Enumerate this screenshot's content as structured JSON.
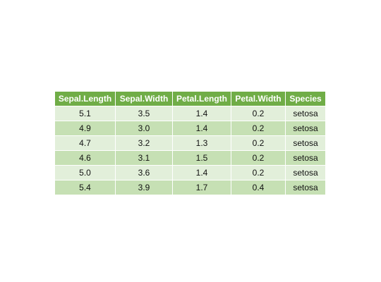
{
  "chart_data": {
    "type": "table",
    "columns": [
      "Sepal.Length",
      "Sepal.Width",
      "Petal.Length",
      "Petal.Width",
      "Species"
    ],
    "rows": [
      [
        "5.1",
        "3.5",
        "1.4",
        "0.2",
        "setosa"
      ],
      [
        "4.9",
        "3.0",
        "1.4",
        "0.2",
        "setosa"
      ],
      [
        "4.7",
        "3.2",
        "1.3",
        "0.2",
        "setosa"
      ],
      [
        "4.6",
        "3.1",
        "1.5",
        "0.2",
        "setosa"
      ],
      [
        "5.0",
        "3.6",
        "1.4",
        "0.2",
        "setosa"
      ],
      [
        "5.4",
        "3.9",
        "1.7",
        "0.4",
        "setosa"
      ]
    ],
    "colors": {
      "header_background": "#70ad47",
      "header_text": "#ffffff",
      "band_light": "#e2efda",
      "band_dark": "#c6e0b4"
    }
  }
}
